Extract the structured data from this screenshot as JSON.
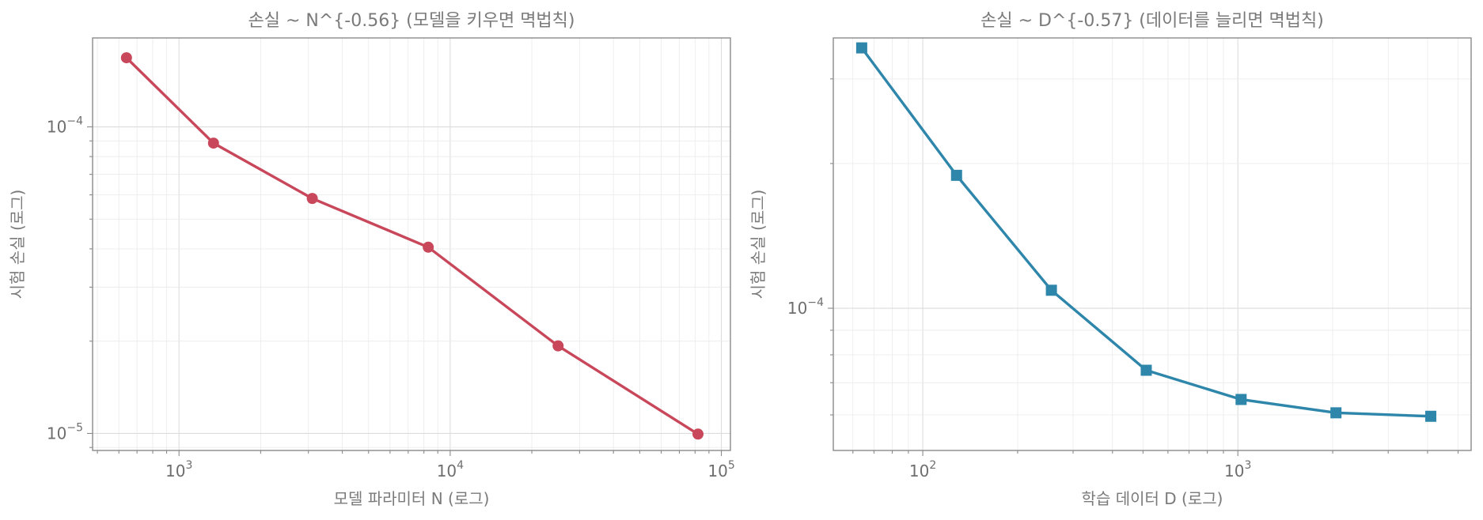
{
  "chart_data": [
    {
      "type": "line",
      "title": "손실 ~ N^{-0.56}  (모델을 키우면 멱법칙)",
      "xlabel": "모델 파라미터 N (로그)",
      "ylabel": "시험 손실 (로그)",
      "xscale": "log",
      "yscale": "log",
      "xlim": [
        480,
        108000
      ],
      "ylim": [
        8.8e-06,
        0.000195
      ],
      "xticks": [
        {
          "value": 1000,
          "base": "10",
          "exp": "3"
        },
        {
          "value": 10000,
          "base": "10",
          "exp": "4"
        },
        {
          "value": 100000,
          "base": "10",
          "exp": "5"
        }
      ],
      "yticks": [
        {
          "value": 1e-05,
          "base": "10",
          "exp": "−5"
        },
        {
          "value": 0.0001,
          "base": "10",
          "exp": "−4"
        }
      ],
      "grid": true,
      "series": [
        {
          "color": "#c8475a",
          "marker": "circle",
          "x": [
            640,
            1340,
            3100,
            8300,
            25000,
            82000
          ],
          "y": [
            0.000168,
            8.85e-05,
            5.84e-05,
            4.05e-05,
            1.93e-05,
            9.95e-06
          ]
        }
      ]
    },
    {
      "type": "line",
      "title": "손실 ~ D^{-0.57}  (데이터를 늘리면 멱법칙)",
      "xlabel": "학습 데이터 D (로그)",
      "ylabel": "시험 손실 (로그)",
      "xscale": "log",
      "yscale": "log",
      "xlim": [
        52,
        5500
      ],
      "ylim": [
        5.06e-05,
        0.000365
      ],
      "xticks": [
        {
          "value": 100,
          "base": "10",
          "exp": "2"
        },
        {
          "value": 1000,
          "base": "10",
          "exp": "3"
        }
      ],
      "yticks": [
        {
          "value": 0.0001,
          "base": "10",
          "exp": "−4"
        }
      ],
      "grid": true,
      "series": [
        {
          "color": "#2e86ab",
          "marker": "square",
          "x": [
            64,
            128,
            256,
            512,
            1024,
            2048,
            4096
          ],
          "y": [
            0.000348,
            0.000189,
            0.000109,
            7.43e-05,
            6.46e-05,
            6.06e-05,
            5.96e-05
          ]
        }
      ]
    }
  ]
}
